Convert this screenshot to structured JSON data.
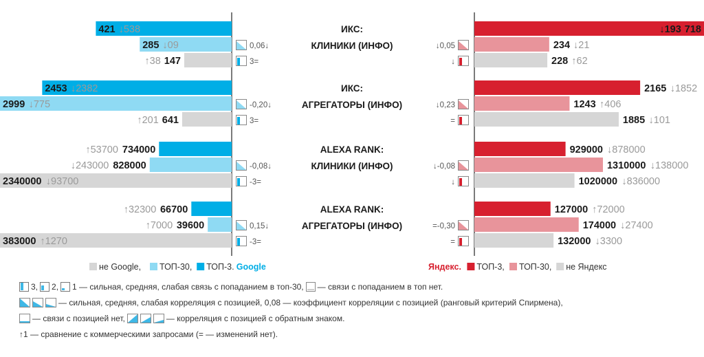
{
  "chart_data": [
    {
      "type": "bar",
      "title": "ИКС: КЛИНИКИ (ИНФО)",
      "google": {
        "corr": "0,06↓",
        "link": "3=",
        "rows": [
          {
            "series": "ТОП-3",
            "value": 421,
            "change": "↓538"
          },
          {
            "series": "ТОП-30",
            "value": 285,
            "change": "↓09"
          },
          {
            "series": "не Google",
            "value": 147,
            "change": "↑38"
          }
        ]
      },
      "yandex": {
        "corr": "↓0,05",
        "link": "↓",
        "rows": [
          {
            "series": "ТОП-3",
            "value": 718,
            "change": "↓193"
          },
          {
            "series": "ТОП-30",
            "value": 234,
            "change": "↓21"
          },
          {
            "series": "не Яндекс",
            "value": 228,
            "change": "↑62"
          }
        ]
      }
    },
    {
      "type": "bar",
      "title": "ИКС: АГРЕГАТОРЫ (ИНФО)",
      "google": {
        "corr": "-0,20↓",
        "link": "3=",
        "rows": [
          {
            "series": "ТОП-3",
            "value": 2453,
            "change": "↓2382"
          },
          {
            "series": "ТОП-30",
            "value": 2999,
            "change": "↓775"
          },
          {
            "series": "не Google",
            "value": 641,
            "change": "↑201"
          }
        ]
      },
      "yandex": {
        "corr": "↓0,23",
        "link": "=",
        "rows": [
          {
            "series": "ТОП-3",
            "value": 2165,
            "change": "↓1852"
          },
          {
            "series": "ТОП-30",
            "value": 1243,
            "change": "↑406"
          },
          {
            "series": "не Яндекс",
            "value": 1885,
            "change": "↓101"
          }
        ]
      }
    },
    {
      "type": "bar",
      "title": "ALEXA RANK: КЛИНИКИ (ИНФО)",
      "google": {
        "corr": "-0,08↓",
        "link": "-3=",
        "rows": [
          {
            "series": "ТОП-3",
            "value": 734000,
            "change": "↑53700"
          },
          {
            "series": "ТОП-30",
            "value": 828000,
            "change": "↓243000"
          },
          {
            "series": "не Google",
            "value": 2340000,
            "change": "↓93700"
          }
        ]
      },
      "yandex": {
        "corr": "↓-0,08",
        "link": "↓",
        "rows": [
          {
            "series": "ТОП-3",
            "value": 929000,
            "change": "↓878000"
          },
          {
            "series": "ТОП-30",
            "value": 1310000,
            "change": "↓138000"
          },
          {
            "series": "не Яндекс",
            "value": 1020000,
            "change": "↓836000"
          }
        ]
      }
    },
    {
      "type": "bar",
      "title": "ALEXA RANK: АГРЕГАТОРЫ (ИНФО)",
      "google": {
        "corr": "0,15↓",
        "link": "-3=",
        "rows": [
          {
            "series": "ТОП-3",
            "value": 66700,
            "change": "↑32300"
          },
          {
            "series": "ТОП-30",
            "value": 39600,
            "change": "↑7000"
          },
          {
            "series": "не Google",
            "value": 383000,
            "change": "↑1270"
          }
        ]
      },
      "yandex": {
        "corr": "=-0,30",
        "link": "=",
        "rows": [
          {
            "series": "ТОП-3",
            "value": 127000,
            "change": "↑72000"
          },
          {
            "series": "ТОП-30",
            "value": 174000,
            "change": "↓27400"
          },
          {
            "series": "не Яндекс",
            "value": 132000,
            "change": "↓3300"
          }
        ]
      }
    }
  ],
  "colors": {
    "google_top3": "#00aee6",
    "google_top30": "#8fdaf3",
    "not_google": "#d6d6d6",
    "yandex_top3": "#d7202f",
    "yandex_top30": "#e8949b",
    "not_yandex": "#d6d6d6",
    "change_text": "#9a9a9a"
  },
  "legend": {
    "google_items": [
      "не Google,",
      "ТОП-30,",
      "ТОП-3."
    ],
    "google_brand": "Google",
    "yandex_brand": "Яндекс.",
    "yandex_items": [
      "ТОП-3,",
      "ТОП-30,",
      "не Яндекс"
    ]
  },
  "notes": {
    "line1_a": "3,",
    "line1_b": "2,",
    "line1_c": "1 — сильная, средняя, слабая связь с попаданием в топ-30,",
    "line1_d": "— связи с попаданием в топ нет.",
    "line2": "— сильная, средняя, слабая корреляция с позицией, 0,08 — коэффициент корреляции с позицией (ранговый критерий Спирмена),",
    "line3_a": "— связи с позицией нет,",
    "line3_b": "— корреляция с позицией с обратным знаком.",
    "line4": "↑1 — сравнение с коммерческими запросами (= — изменений нет)."
  }
}
